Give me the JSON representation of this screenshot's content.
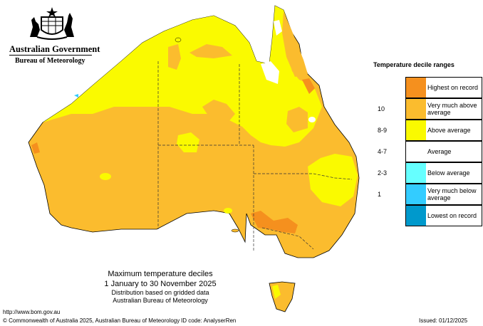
{
  "branding": {
    "government": "Australian Government",
    "bureau": "Bureau of Meteorology"
  },
  "caption": {
    "title": "Maximum temperature deciles",
    "period": "1 January to 30 November 2025",
    "line3": "Distribution based on gridded data",
    "line4": "Australian Bureau of Meteorology"
  },
  "legend": {
    "title": "Temperature decile ranges",
    "items": [
      {
        "range": "",
        "label": "Highest on record",
        "color": "#f5901e"
      },
      {
        "range": "10",
        "label": "Very much above average",
        "color": "#fbbc2e"
      },
      {
        "range": "8-9",
        "label": "Above average",
        "color": "#fafa00"
      },
      {
        "range": "4-7",
        "label": "Average",
        "color": "#ffffff"
      },
      {
        "range": "2-3",
        "label": "Below average",
        "color": "#66ffff"
      },
      {
        "range": "1",
        "label": "Very much below average",
        "color": "#33ccff"
      },
      {
        "range": "",
        "label": "Lowest on record",
        "color": "#0099cc"
      }
    ]
  },
  "footer": {
    "url": "http://www.bom.gov.au",
    "copyright": "© Commonwealth of Australia 2025, Australian Bureau of Meteorology",
    "id_code": "ID code: AnalyserRen",
    "issued": "Issued: 01/12/2025"
  },
  "icons": {
    "coat_of_arms": "coat-of-arms-icon"
  }
}
